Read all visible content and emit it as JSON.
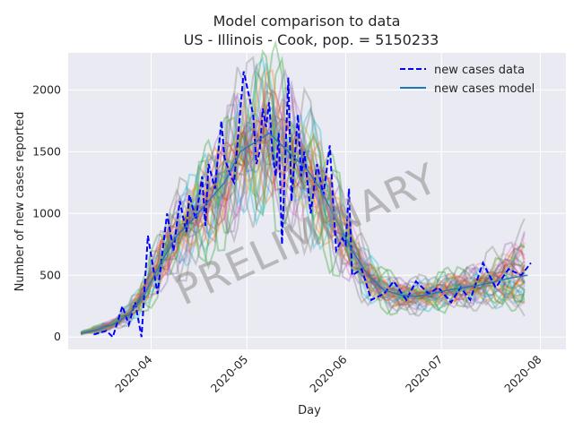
{
  "chart_data": {
    "type": "line",
    "title": "Model comparison to data",
    "subtitle": "US - Illinois - Cook, pop. = 5150233",
    "xlabel": "Day",
    "ylabel": "Number of new cases reported",
    "x_ticks": [
      "2020-04",
      "2020-05",
      "2020-06",
      "2020-07",
      "2020-08"
    ],
    "y_ticks": [
      0,
      500,
      1000,
      1500,
      2000
    ],
    "ylim": [
      -100,
      2300
    ],
    "xlim": [
      "2020-03-06",
      "2020-08-09"
    ],
    "grid": true,
    "legend_position": "top-right",
    "watermark": "PRELIMINARY",
    "colors": {
      "background": "#eaeaf2",
      "grid": "#ffffff",
      "data": "#0000ff",
      "model": "#1f77b4",
      "ensemble": [
        "#1f77b4",
        "#ff7f0e",
        "#2ca02c",
        "#d62728",
        "#9467bd",
        "#8c564b",
        "#e377c2",
        "#7f7f7f",
        "#bcbd22",
        "#17becf"
      ]
    },
    "series": [
      {
        "name": "new cases data",
        "style": "dashed",
        "x": [
          "2020-03-14",
          "2020-03-18",
          "2020-03-20",
          "2020-03-23",
          "2020-03-25",
          "2020-03-27",
          "2020-03-29",
          "2020-03-31",
          "2020-04-03",
          "2020-04-06",
          "2020-04-08",
          "2020-04-10",
          "2020-04-12",
          "2020-04-13",
          "2020-04-15",
          "2020-04-17",
          "2020-04-18",
          "2020-04-19",
          "2020-04-21",
          "2020-04-23",
          "2020-04-24",
          "2020-04-26",
          "2020-04-27",
          "2020-04-28",
          "2020-04-30",
          "2020-05-03",
          "2020-05-04",
          "2020-05-05",
          "2020-05-06",
          "2020-05-07",
          "2020-05-08",
          "2020-05-09",
          "2020-05-10",
          "2020-05-11",
          "2020-05-12",
          "2020-05-14",
          "2020-05-15",
          "2020-05-17",
          "2020-05-18",
          "2020-05-19",
          "2020-05-21",
          "2020-05-23",
          "2020-05-25",
          "2020-05-27",
          "2020-05-29",
          "2020-05-31",
          "2020-06-01",
          "2020-06-02",
          "2020-06-03",
          "2020-06-06",
          "2020-06-09",
          "2020-06-13",
          "2020-06-16",
          "2020-06-20",
          "2020-06-23",
          "2020-06-27",
          "2020-06-30",
          "2020-07-04",
          "2020-07-07",
          "2020-07-10",
          "2020-07-14",
          "2020-07-18",
          "2020-07-22",
          "2020-07-26",
          "2020-07-29"
        ],
        "y": [
          20,
          50,
          0,
          250,
          100,
          280,
          0,
          820,
          350,
          1000,
          700,
          1100,
          850,
          1150,
          950,
          1300,
          900,
          1400,
          1200,
          1750,
          1450,
          1300,
          1250,
          1550,
          2150,
          1800,
          1400,
          1500,
          1850,
          1700,
          1900,
          1500,
          1300,
          1650,
          750,
          2100,
          1100,
          1800,
          1300,
          1500,
          1000,
          1400,
          1150,
          1550,
          700,
          800,
          750,
          1200,
          500,
          550,
          300,
          350,
          450,
          300,
          450,
          350,
          400,
          280,
          400,
          300,
          600,
          400,
          550,
          500,
          600
        ]
      },
      {
        "name": "new cases model",
        "style": "solid",
        "x": [
          "2020-03-10",
          "2020-03-15",
          "2020-03-20",
          "2020-03-25",
          "2020-03-30",
          "2020-04-04",
          "2020-04-09",
          "2020-04-14",
          "2020-04-19",
          "2020-04-24",
          "2020-04-29",
          "2020-05-02",
          "2020-05-05",
          "2020-05-08",
          "2020-05-12",
          "2020-05-16",
          "2020-05-20",
          "2020-05-24",
          "2020-05-29",
          "2020-06-03",
          "2020-06-08",
          "2020-06-13",
          "2020-06-18",
          "2020-06-23",
          "2020-06-28",
          "2020-07-03",
          "2020-07-08",
          "2020-07-13",
          "2020-07-18",
          "2020-07-23",
          "2020-07-28"
        ],
        "y": [
          30,
          60,
          100,
          180,
          350,
          600,
          820,
          950,
          1100,
          1250,
          1500,
          1550,
          1600,
          1650,
          1550,
          1450,
          1350,
          1200,
          950,
          700,
          500,
          380,
          340,
          330,
          350,
          380,
          400,
          420,
          450,
          480,
          500
        ]
      }
    ]
  }
}
